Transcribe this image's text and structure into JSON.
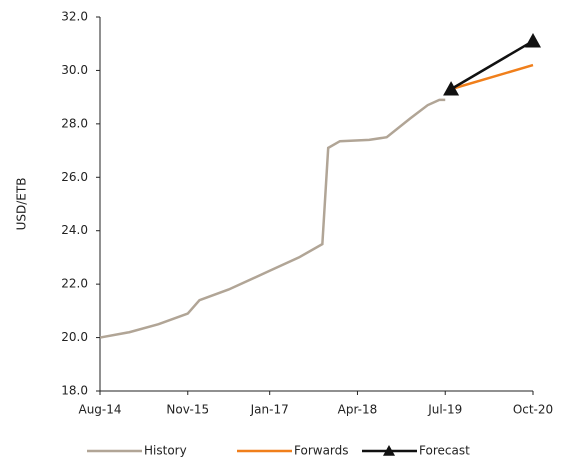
{
  "chart_data": {
    "type": "line",
    "y_label": "USD/ETB",
    "ylim": [
      18,
      32
    ],
    "yticks": [
      {
        "value": 18,
        "label": "18.0"
      },
      {
        "value": 20,
        "label": "20.0"
      },
      {
        "value": 22,
        "label": "22.0"
      },
      {
        "value": 24,
        "label": "24.0"
      },
      {
        "value": 26,
        "label": "26.0"
      },
      {
        "value": 28,
        "label": "28.0"
      },
      {
        "value": 30,
        "label": "30.0"
      },
      {
        "value": 32,
        "label": "32.0"
      }
    ],
    "xlim": [
      "2014-08",
      "2020-10"
    ],
    "xticks": [
      {
        "value": "2014-08",
        "label": "Aug-14"
      },
      {
        "value": "2015-11",
        "label": "Nov-15"
      },
      {
        "value": "2017-01",
        "label": "Jan-17"
      },
      {
        "value": "2018-04",
        "label": "Apr-18"
      },
      {
        "value": "2019-07",
        "label": "Jul-19"
      },
      {
        "value": "2020-10",
        "label": "Oct-20"
      }
    ],
    "series": [
      {
        "name": "History",
        "color": "#b1a596",
        "x": [
          "2014-08",
          "2015-01",
          "2015-06",
          "2015-11",
          "2016-01",
          "2016-06",
          "2017-01",
          "2017-06",
          "2017-10",
          "2017-11",
          "2018-01",
          "2018-06",
          "2018-09",
          "2019-01",
          "2019-04",
          "2019-06",
          "2019-07"
        ],
        "values": [
          20.0,
          20.2,
          20.5,
          20.9,
          21.4,
          21.8,
          22.5,
          23.0,
          23.5,
          27.1,
          27.35,
          27.4,
          27.5,
          28.2,
          28.7,
          28.9,
          28.9
        ]
      },
      {
        "name": "Forwards",
        "color": "#f07f1b",
        "x": [
          "2019-08",
          "2020-10"
        ],
        "values": [
          29.3,
          30.2
        ]
      },
      {
        "name": "Forecast",
        "color": "#111111",
        "marker": "triangle",
        "x": [
          "2019-08",
          "2020-10"
        ],
        "values": [
          29.3,
          31.1
        ]
      }
    ]
  }
}
